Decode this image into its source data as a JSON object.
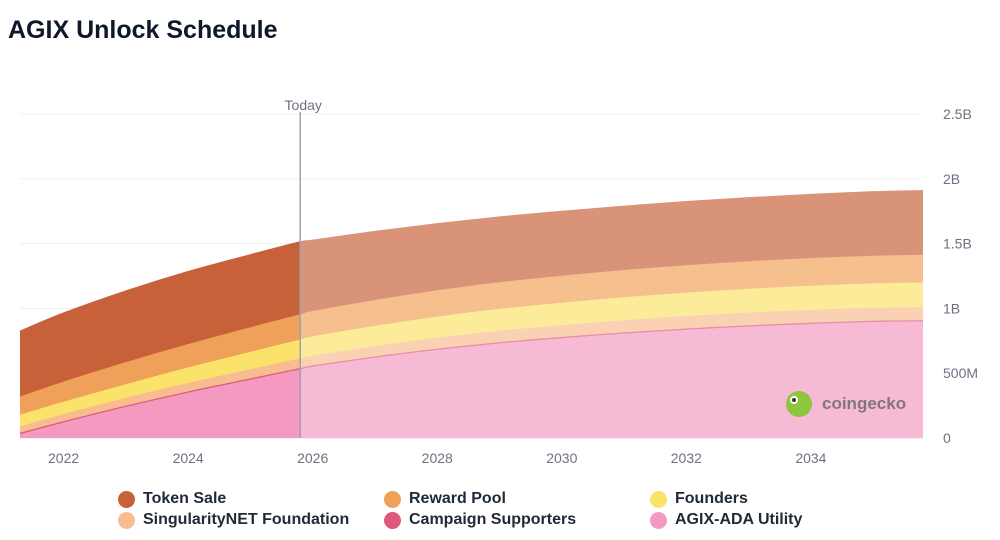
{
  "title": "AGIX Unlock Schedule",
  "chart_data": {
    "type": "area",
    "stacked": true,
    "title": "AGIX Unlock Schedule",
    "x": [
      2021.3,
      2022,
      2023,
      2024,
      2025,
      2025.8,
      2026,
      2027,
      2028,
      2029,
      2030,
      2031,
      2032,
      2033,
      2034,
      2035,
      2035.8
    ],
    "xlim": [
      2021.3,
      2035.8
    ],
    "ylim": [
      0,
      2500000000
    ],
    "x_ticks": [
      2022,
      2024,
      2026,
      2028,
      2030,
      2032,
      2034
    ],
    "x_tick_labels": [
      "2022",
      "2024",
      "2026",
      "2028",
      "2030",
      "2032",
      "2034"
    ],
    "y_ticks": [
      0,
      500000000,
      1000000000,
      1500000000,
      2000000000,
      2500000000
    ],
    "y_tick_labels": [
      "0",
      "500M",
      "1B",
      "1.5B",
      "2B",
      "2.5B"
    ],
    "today_x": 2025.8,
    "today_label": "Today",
    "watermark": "coingecko",
    "series": [
      {
        "name": "AGIX-ADA Utility",
        "color": "#f49ac1",
        "values": [
          30000000,
          120000000,
          240000000,
          350000000,
          450000000,
          530000000,
          550000000,
          620000000,
          680000000,
          730000000,
          770000000,
          805000000,
          835000000,
          860000000,
          880000000,
          895000000,
          900000000
        ]
      },
      {
        "name": "Campaign Supporters",
        "color": "#dd5a7a",
        "values": [
          10000000,
          10000000,
          10000000,
          10000000,
          10000000,
          10000000,
          10000000,
          10000000,
          10000000,
          10000000,
          10000000,
          10000000,
          10000000,
          10000000,
          10000000,
          10000000,
          10000000
        ]
      },
      {
        "name": "SingularityNET Foundation",
        "color": "#f9bc91",
        "values": [
          50000000,
          55000000,
          60000000,
          65000000,
          70000000,
          75000000,
          76000000,
          80000000,
          85000000,
          88000000,
          91000000,
          94000000,
          96000000,
          98000000,
          99000000,
          100000000,
          100000000
        ]
      },
      {
        "name": "Founders",
        "color": "#fbe36b",
        "values": [
          90000000,
          95000000,
          105000000,
          120000000,
          135000000,
          145000000,
          148000000,
          155000000,
          162000000,
          168000000,
          173000000,
          177000000,
          181000000,
          184000000,
          186000000,
          188000000,
          190000000
        ]
      },
      {
        "name": "Reward Pool",
        "color": "#f0a159",
        "values": [
          140000000,
          155000000,
          170000000,
          180000000,
          190000000,
          195000000,
          196000000,
          200000000,
          203000000,
          206000000,
          208000000,
          210000000,
          211000000,
          212000000,
          213000000,
          213000000,
          213000000
        ]
      },
      {
        "name": "Token Sale",
        "color": "#c8603a",
        "values": [
          500000000,
          525000000,
          545000000,
          555000000,
          555000000,
          555000000,
          542000000,
          525000000,
          510000000,
          500000000,
          493000000,
          489000000,
          487000000,
          486000000,
          487000000,
          490000000,
          492000000
        ]
      }
    ]
  },
  "legend": [
    {
      "label": "Token Sale",
      "color": "#c8603a"
    },
    {
      "label": "Reward Pool",
      "color": "#f0a159"
    },
    {
      "label": "Founders",
      "color": "#fbe36b"
    },
    {
      "label": "SingularityNET Foundation",
      "color": "#f9bc91"
    },
    {
      "label": "Campaign Supporters",
      "color": "#dd5a7a"
    },
    {
      "label": "AGIX-ADA Utility",
      "color": "#f49ac1"
    }
  ]
}
